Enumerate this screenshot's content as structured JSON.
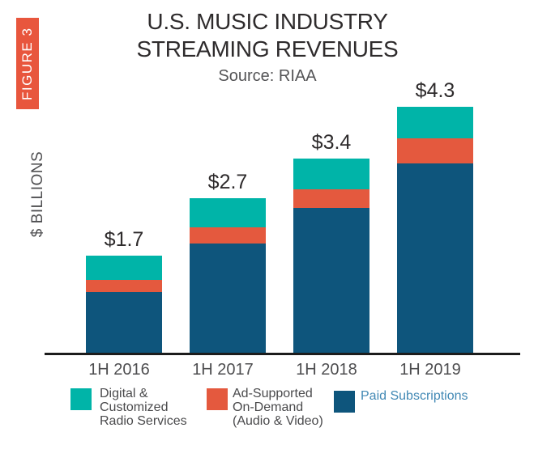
{
  "figure_badge": {
    "label": "FIGURE 3",
    "color": "#e8563d"
  },
  "header": {
    "title_lines": [
      "U.S. MUSIC INDUSTRY",
      "STREAMING REVENUES"
    ],
    "source": "Source: RIAA"
  },
  "y_axis": {
    "label": "$ BILLIONS"
  },
  "chart_data": {
    "type": "bar",
    "stacked": true,
    "title": "U.S. MUSIC INDUSTRY STREAMING REVENUES",
    "subtitle": "Source: RIAA",
    "ylabel": "$ BILLIONS",
    "xlabel": "",
    "categories": [
      "1H 2016",
      "1H 2017",
      "1H 2018",
      "1H 2019"
    ],
    "totals": [
      1.7,
      2.7,
      3.4,
      4.3
    ],
    "total_labels": [
      "$1.7",
      "$2.7",
      "$3.4",
      "$4.3"
    ],
    "series": [
      {
        "name": "Paid Subscriptions",
        "color": "#0e557c",
        "values": [
          1.07,
          1.92,
          2.54,
          3.31
        ]
      },
      {
        "name": "Ad-Supported On-Demand (Audio & Video)",
        "color": "#e4593e",
        "values": [
          0.21,
          0.28,
          0.32,
          0.44
        ]
      },
      {
        "name": "Digital & Customized Radio Services",
        "color": "#00b4a8",
        "values": [
          0.42,
          0.5,
          0.54,
          0.55
        ]
      }
    ],
    "ylim": [
      0,
      4.5
    ],
    "grid": false,
    "legend_position": "bottom"
  },
  "legend": {
    "items": [
      {
        "lines": [
          "Digital &",
          "Customized",
          "Radio Services"
        ],
        "color": "#00b4a8",
        "text_color": "#4a4a4c"
      },
      {
        "lines": [
          "Ad-Supported",
          "On-Demand",
          "(Audio & Video)"
        ],
        "color": "#e4593e",
        "text_color": "#4a4a4c"
      },
      {
        "lines": [
          "Paid Subscriptions"
        ],
        "color": "#0e557c",
        "text_color": "#4289b5"
      }
    ]
  }
}
